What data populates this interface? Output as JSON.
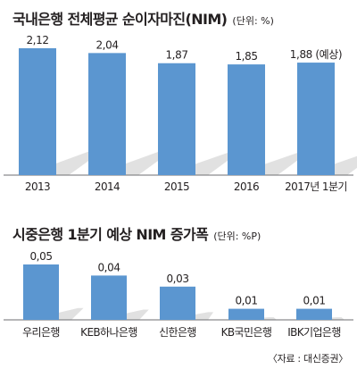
{
  "chart_data": [
    {
      "type": "bar",
      "title": "국내은행 전체평균 순이자마진(NIM)",
      "unit": "(단위: %)",
      "categories": [
        "2013",
        "2014",
        "2015",
        "2016",
        "2017년 1분기"
      ],
      "values": [
        2.12,
        2.04,
        1.87,
        1.85,
        1.88
      ],
      "value_labels": [
        "2,12",
        "2,04",
        "1,87",
        "1,85",
        "1,88 (예상)"
      ],
      "colors": {
        "bar": "#5b96d0",
        "shadow": "#e1e1e1",
        "axis": "#6d6e71"
      }
    },
    {
      "type": "bar",
      "title": "시중은행 1분기 예상 NIM 증가폭",
      "unit": "(단위: %P)",
      "categories": [
        "우리은행",
        "KEB하나은행",
        "신한은행",
        "KB국민은행",
        "IBK기업은행"
      ],
      "values": [
        0.05,
        0.04,
        0.03,
        0.01,
        0.01
      ],
      "value_labels": [
        "0,05",
        "0,04",
        "0,03",
        "0,01",
        "0,01"
      ],
      "colors": {
        "bar": "#5b96d0",
        "shadow": "#e1e1e1",
        "axis": "#6d6e71"
      }
    }
  ],
  "source": "〈자료 : 대신증권〉"
}
